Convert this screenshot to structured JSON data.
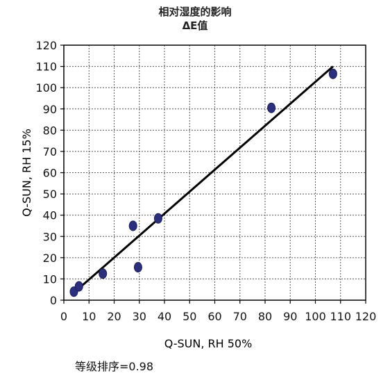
{
  "chart_data": {
    "type": "scatter",
    "title": "相对湿度的影响",
    "subtitle": "ΔE值",
    "xlabel": "Q-SUN, RH 50%",
    "ylabel": "Q-SUN, RH 15%",
    "xlim": [
      0,
      120
    ],
    "ylim": [
      0,
      120
    ],
    "xticks": [
      0,
      10,
      20,
      30,
      40,
      50,
      60,
      70,
      80,
      90,
      100,
      110,
      120
    ],
    "yticks": [
      0,
      10,
      20,
      30,
      40,
      50,
      60,
      70,
      80,
      90,
      100,
      110,
      120
    ],
    "grid": "dotted",
    "points": [
      {
        "x": 4,
        "y": 4
      },
      {
        "x": 6,
        "y": 6.5
      },
      {
        "x": 15.5,
        "y": 12.5
      },
      {
        "x": 27.5,
        "y": 35
      },
      {
        "x": 29.5,
        "y": 15.5
      },
      {
        "x": 37.5,
        "y": 38.5
      },
      {
        "x": 82.5,
        "y": 90.5
      },
      {
        "x": 107,
        "y": 106.5
      }
    ],
    "trendline": {
      "x": [
        4,
        107
      ],
      "y": [
        3.5,
        110
      ]
    },
    "marker_color": "#2b2f7e",
    "line_color": "#000000"
  },
  "annotation": "等级排序=0.98"
}
